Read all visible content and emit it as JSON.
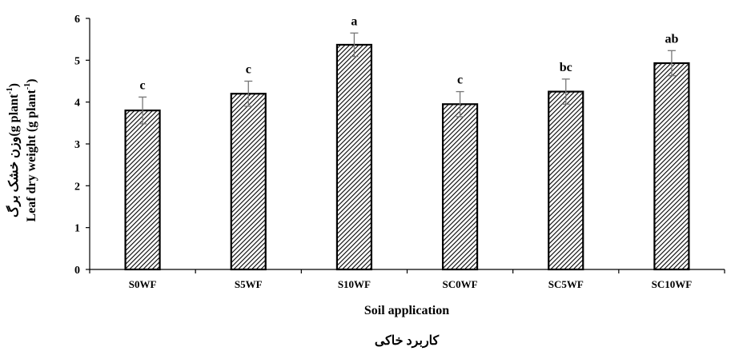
{
  "chart_data": {
    "type": "bar",
    "categories": [
      "S0WF",
      "S5WF",
      "S10WF",
      "SC0WF",
      "SC5WF",
      "SC10WF"
    ],
    "values": [
      3.8,
      4.2,
      5.37,
      3.95,
      4.25,
      4.93
    ],
    "errors": [
      0.32,
      0.3,
      0.28,
      0.3,
      0.3,
      0.3
    ],
    "letters": [
      "c",
      "c",
      "a",
      "c",
      "bc",
      "ab"
    ],
    "ylim": [
      0,
      6
    ],
    "yticks": [
      "0",
      "1",
      "2",
      "3",
      "4",
      "5",
      "6"
    ],
    "xlabel": "Soil application",
    "xlabel_fa": "کاربرد خاکی",
    "ylabel_main": "Leaf dry weight (g plant",
    "ylabel_main_sup": "-1",
    "ylabel_main_end": ")",
    "ylabel_fa": "وزن خشک برگ",
    "ylabel_fa_unit": "(g plant",
    "ylabel_fa_sup": "-1",
    "ylabel_fa_end": ")",
    "bar_pattern": "diagonal hatch, black on white",
    "grid": false
  }
}
